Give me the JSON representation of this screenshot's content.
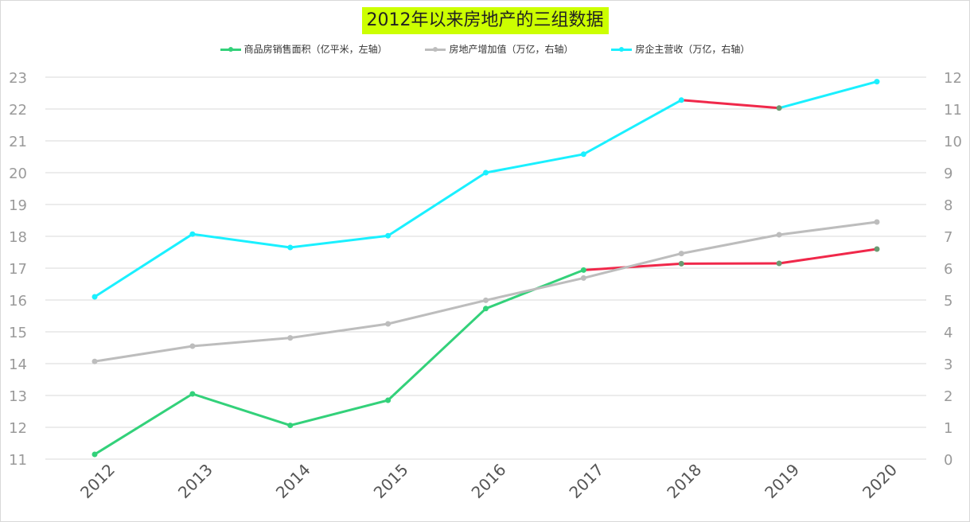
{
  "chart_data": {
    "type": "line",
    "title": "2012年以来房地产的三组数据",
    "categories": [
      "2012",
      "2013",
      "2014",
      "2015",
      "2016",
      "2017",
      "2018",
      "2019",
      "2020"
    ],
    "y_left": {
      "range": [
        11,
        23
      ],
      "ticks": [
        11,
        12,
        13,
        14,
        15,
        16,
        17,
        18,
        19,
        20,
        21,
        22,
        23
      ]
    },
    "y_right": {
      "range": [
        0,
        12
      ],
      "ticks": [
        0,
        1,
        2,
        3,
        4,
        5,
        6,
        7,
        8,
        9,
        10,
        11,
        12
      ]
    },
    "grid": true,
    "legend_position": "top",
    "series": [
      {
        "name": "商品房销售面积（亿平米，左轴）",
        "axis": "left",
        "color": "#33d17a",
        "highlight_from": 5,
        "highlight_color": "#f0284a",
        "values": [
          11.15,
          13.05,
          12.06,
          12.85,
          15.73,
          16.94,
          17.14,
          17.15,
          17.6
        ]
      },
      {
        "name": "房地产增加值（万亿，右轴）",
        "axis": "right",
        "color": "#bdbdbd",
        "values": [
          3.07,
          3.55,
          3.81,
          4.25,
          4.99,
          5.69,
          6.46,
          7.05,
          7.45
        ]
      },
      {
        "name": "房企主营收（万亿，右轴）",
        "axis": "right",
        "color": "#1af0ff",
        "highlight_from": 6,
        "highlight_to": 7,
        "highlight_color": "#f0284a",
        "values": [
          5.1,
          7.07,
          6.65,
          7.02,
          9.0,
          9.58,
          11.28,
          11.03,
          11.86
        ]
      }
    ]
  }
}
